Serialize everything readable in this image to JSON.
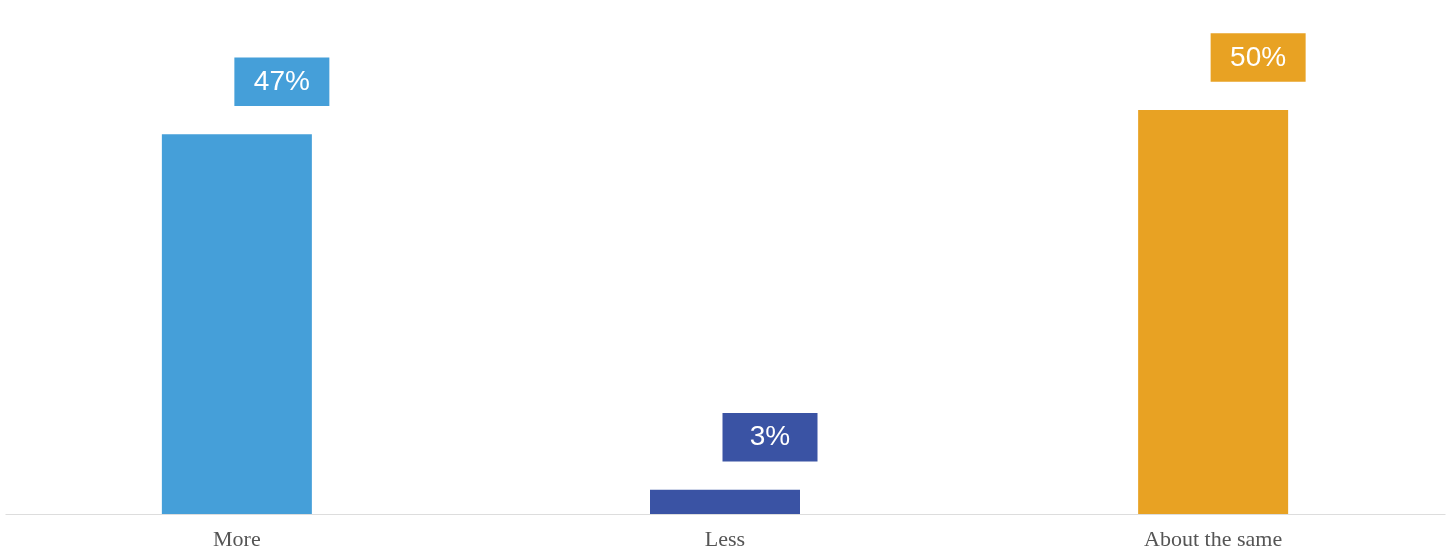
{
  "chart_data": {
    "type": "bar",
    "categories": [
      "More",
      "Less",
      "About the same"
    ],
    "values": [
      47,
      3,
      50
    ],
    "colors": [
      "#459fd9",
      "#3a53a4",
      "#e8a223"
    ],
    "value_labels": [
      "47%",
      "3%",
      "50%"
    ]
  }
}
